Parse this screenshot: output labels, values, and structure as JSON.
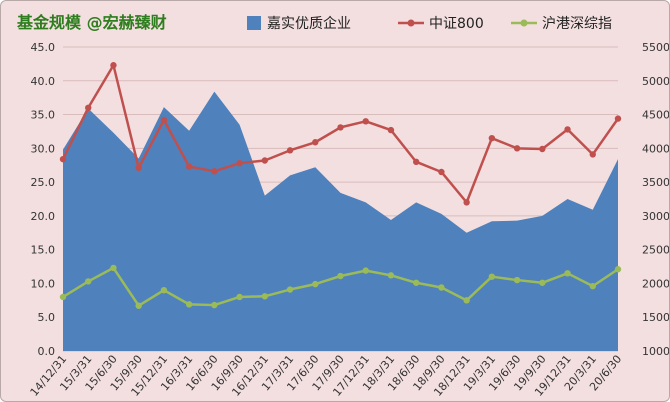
{
  "chart_data": {
    "type": "area",
    "title": "基金规模 @宏赫臻财",
    "categories": [
      "14/12/31",
      "15/3/31",
      "15/6/30",
      "15/9/30",
      "15/12/31",
      "16/3/31",
      "16/6/30",
      "16/9/30",
      "16/12/31",
      "17/3/31",
      "17/6/30",
      "17/9/30",
      "17/12/31",
      "18/3/31",
      "18/6/30",
      "18/9/30",
      "18/12/31",
      "19/3/31",
      "19/6/30",
      "19/9/30",
      "19/12/31",
      "20/3/31",
      "20/6/30"
    ],
    "left_axis": {
      "ticks": [
        "0.0",
        "5.0",
        "10.0",
        "15.0",
        "20.0",
        "25.0",
        "30.0",
        "35.0",
        "40.0",
        "45.0"
      ],
      "ylim": [
        0,
        45
      ]
    },
    "right_axis": {
      "ticks": [
        "1000",
        "1500",
        "2000",
        "2500",
        "3000",
        "3500",
        "4000",
        "4500",
        "5000",
        "5500"
      ],
      "ylim": [
        1000,
        5500
      ]
    },
    "series": [
      {
        "name": "嘉实优质企业",
        "type": "area",
        "axis": "left",
        "color": "#4f81bd",
        "values": [
          29.8,
          35.9,
          32.3,
          28.5,
          36.1,
          32.6,
          38.4,
          33.5,
          23.0,
          26.0,
          27.2,
          23.4,
          22.0,
          19.4,
          22.0,
          20.3,
          17.5,
          19.2,
          19.3,
          20.0,
          22.5,
          20.9,
          28.4
        ]
      },
      {
        "name": "中证800",
        "type": "line",
        "axis": "right",
        "color": "#c0504d",
        "values": [
          3840,
          4600,
          5230,
          3710,
          4420,
          3730,
          3660,
          3780,
          3820,
          3970,
          4090,
          4310,
          4400,
          4270,
          3800,
          3650,
          3200,
          4150,
          4000,
          3990,
          4280,
          3910,
          4440
        ]
      },
      {
        "name": "沪港深综指",
        "type": "line",
        "axis": "right",
        "color": "#9bbb59",
        "values": [
          1800,
          2030,
          2230,
          1670,
          1900,
          1690,
          1680,
          1800,
          1810,
          1910,
          1990,
          2110,
          2190,
          2120,
          2010,
          1940,
          1750,
          2100,
          2050,
          2010,
          2150,
          1960,
          2210
        ]
      }
    ],
    "grid": true,
    "legend": "top"
  }
}
